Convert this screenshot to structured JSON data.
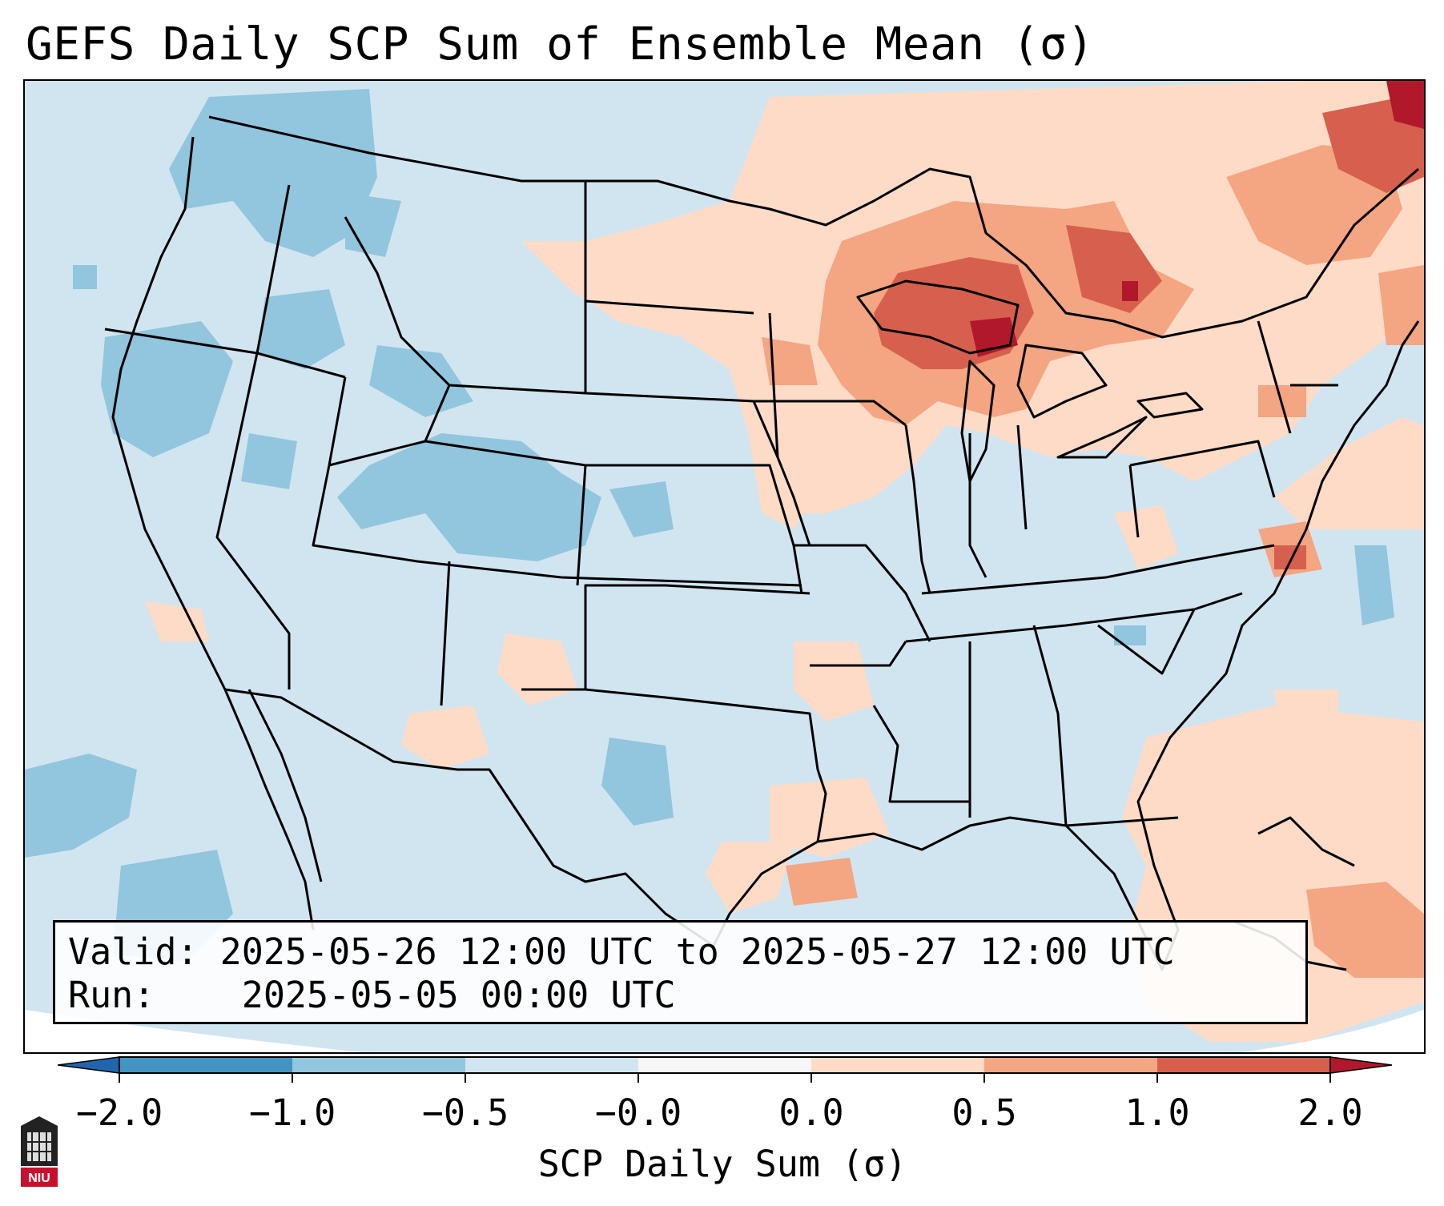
{
  "title": "GEFS Daily SCP Sum of Ensemble Mean (σ)",
  "info": {
    "valid_label": "Valid:",
    "valid_value": "2025-05-26 12:00 UTC to 2025-05-27 12:00 UTC",
    "run_label": "Run:",
    "run_value": "2025-05-05 00:00 UTC"
  },
  "colorbar": {
    "label": "SCP Daily Sum (σ)",
    "ticks": [
      "−2.0",
      "−1.0",
      "−0.5",
      "−0.0",
      "0.0",
      "0.5",
      "1.0",
      "2.0"
    ],
    "bins": [
      {
        "range": "< -2.0",
        "color": "#2166ac"
      },
      {
        "range": "-2.0 to -1.0",
        "color": "#4393c3"
      },
      {
        "range": "-1.0 to -0.5",
        "color": "#92c5de"
      },
      {
        "range": "-0.5 to -0.0",
        "color": "#d1e5f0"
      },
      {
        "range": "-0.0 to 0.0",
        "color": "#f7f7f7"
      },
      {
        "range": "0.0 to 0.5",
        "color": "#fddbc7"
      },
      {
        "range": "0.5 to 1.0",
        "color": "#f4a582"
      },
      {
        "range": "1.0 to 2.0",
        "color": "#d6604d"
      },
      {
        "range": "> 2.0",
        "color": "#b2182b"
      }
    ]
  },
  "colors": {
    "below_neutral": "#d1e5f0",
    "negative_anomaly": "#92c5de",
    "weak_positive": "#fddbc7",
    "moderate_positive": "#f4a582",
    "strong_positive": "#d6604d",
    "extreme_positive": "#b2182b"
  },
  "logo": {
    "icon": "niu-logo-icon",
    "text": "NIU"
  }
}
